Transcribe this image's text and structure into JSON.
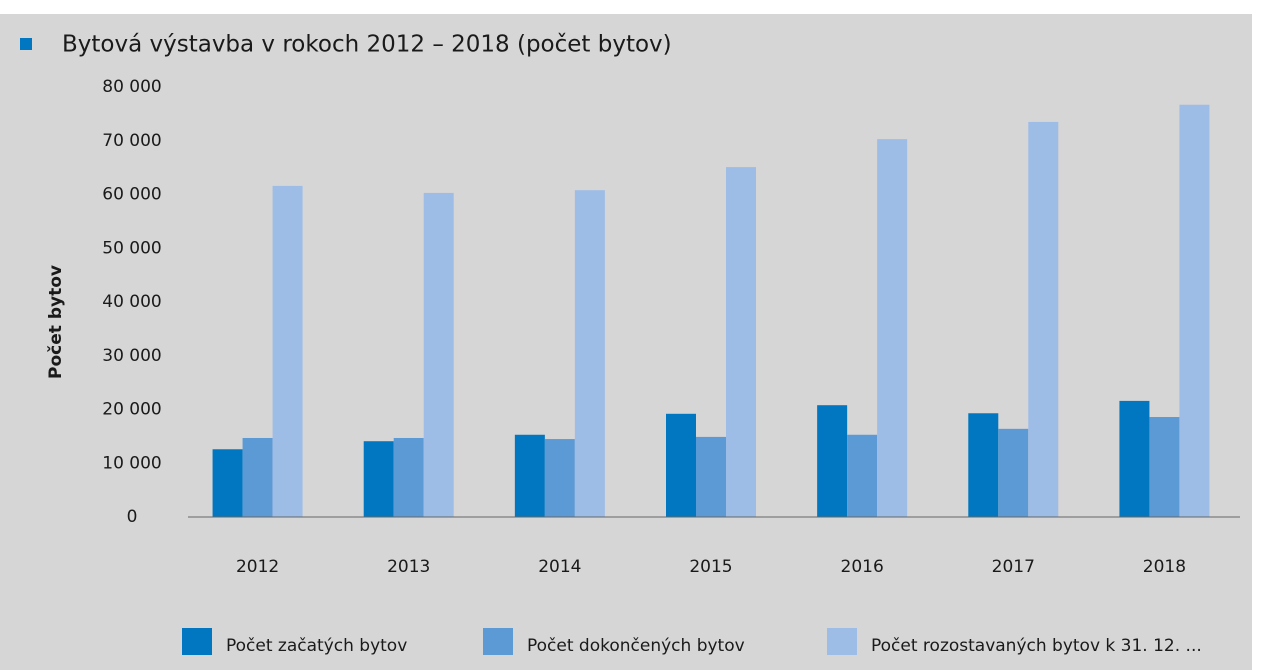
{
  "chart_data": {
    "type": "bar",
    "title": "Bytová výstavba v rokoch 2012 – 2018 (počet bytov)",
    "y_label": "Počet bytov",
    "categories": [
      "2012",
      "2013",
      "2014",
      "2015",
      "2016",
      "2017",
      "2018"
    ],
    "series": [
      {
        "name": "Počet začatých bytov",
        "color": "#0077c0",
        "values": [
          12600,
          14100,
          15300,
          19200,
          20800,
          19300,
          21600
        ]
      },
      {
        "name": "Počet dokončených bytov",
        "color": "#5b9ad4",
        "values": [
          14700,
          14700,
          14500,
          14900,
          15300,
          16400,
          18600
        ]
      },
      {
        "name": "Počet rozostavaných bytov k 31. 12. ...",
        "color": "#9ebde6",
        "values": [
          61600,
          60300,
          60800,
          65100,
          70300,
          73500,
          76700
        ]
      }
    ],
    "ylim": [
      0,
      80000
    ],
    "yticks": [
      {
        "value": 0,
        "label": "0"
      },
      {
        "value": 10000,
        "label": "10 000"
      },
      {
        "value": 20000,
        "label": "20 000"
      },
      {
        "value": 30000,
        "label": "30 000"
      },
      {
        "value": 40000,
        "label": "40 000"
      },
      {
        "value": 50000,
        "label": "50 000"
      },
      {
        "value": 60000,
        "label": "60 000"
      },
      {
        "value": 70000,
        "label": "70 000"
      },
      {
        "value": 80000,
        "label": "80 000"
      }
    ],
    "grid": false
  }
}
